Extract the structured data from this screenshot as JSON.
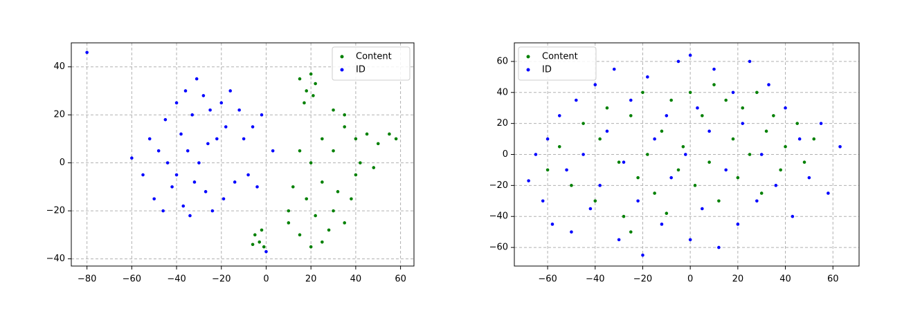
{
  "chart_data": [
    {
      "type": "scatter",
      "xlim": [
        -87,
        66
      ],
      "ylim": [
        -43,
        50
      ],
      "xticks": [
        {
          "value": -80,
          "label": "−80"
        },
        {
          "value": -60,
          "label": "−60"
        },
        {
          "value": -40,
          "label": "−40"
        },
        {
          "value": -20,
          "label": "−20"
        },
        0,
        20,
        40,
        60
      ],
      "yticks": [
        {
          "value": -40,
          "label": "−40"
        },
        {
          "value": -20,
          "label": "−20"
        },
        0,
        20,
        40
      ],
      "grid": true,
      "legend": "upper right",
      "series": [
        {
          "name": "Content",
          "color": "#008000",
          "x": [
            15,
            18,
            20,
            22,
            17,
            21,
            -5,
            -3,
            -1,
            -6,
            -2,
            10,
            15,
            20,
            25,
            28,
            30,
            35,
            18,
            22,
            12,
            25,
            32,
            38,
            40,
            15,
            20,
            25,
            30,
            35,
            40,
            45,
            50,
            55,
            58,
            48,
            42,
            35,
            30,
            10
          ],
          "values": [
            35,
            30,
            37,
            33,
            25,
            28,
            -30,
            -33,
            -35,
            -34,
            -28,
            -25,
            -30,
            -35,
            -33,
            -28,
            -20,
            -25,
            -15,
            -22,
            -10,
            -8,
            -12,
            -15,
            -5,
            5,
            0,
            10,
            5,
            15,
            10,
            12,
            8,
            12,
            10,
            -2,
            0,
            20,
            22,
            -20
          ]
        },
        {
          "name": "ID",
          "color": "#0000ff",
          "x": [
            -80,
            -60,
            -55,
            -52,
            -50,
            -48,
            -46,
            -45,
            -44,
            -42,
            -40,
            -40,
            -38,
            -37,
            -36,
            -35,
            -34,
            -33,
            -32,
            -31,
            -30,
            -28,
            -27,
            -26,
            -25,
            -24,
            -22,
            -20,
            -19,
            -18,
            -16,
            -14,
            -12,
            -10,
            -8,
            -6,
            -4,
            -2,
            3,
            0
          ],
          "values": [
            46,
            2,
            -5,
            10,
            -15,
            5,
            -20,
            18,
            0,
            -10,
            25,
            -5,
            12,
            -18,
            30,
            5,
            -22,
            20,
            -8,
            35,
            0,
            28,
            -12,
            8,
            22,
            -20,
            10,
            25,
            -15,
            15,
            30,
            -8,
            22,
            10,
            -5,
            15,
            -10,
            20,
            5,
            -37
          ]
        }
      ]
    },
    {
      "type": "scatter",
      "xlim": [
        -74,
        71
      ],
      "ylim": [
        -72,
        72
      ],
      "xticks": [
        {
          "value": -60,
          "label": "−60"
        },
        {
          "value": -40,
          "label": "−40"
        },
        {
          "value": -20,
          "label": "−20"
        },
        0,
        20,
        40,
        60
      ],
      "yticks": [
        {
          "value": -60,
          "label": "−60"
        },
        {
          "value": -40,
          "label": "−40"
        },
        {
          "value": -20,
          "label": "−20"
        },
        0,
        20,
        40,
        60
      ],
      "grid": true,
      "legend": "upper left",
      "series": [
        {
          "name": "Content",
          "color": "#008000",
          "x": [
            -60,
            -55,
            -50,
            -45,
            -40,
            -38,
            -35,
            -30,
            -28,
            -25,
            -22,
            -20,
            -18,
            -15,
            -12,
            -10,
            -8,
            -5,
            -3,
            0,
            2,
            5,
            8,
            10,
            12,
            15,
            18,
            20,
            22,
            25,
            28,
            30,
            32,
            35,
            38,
            40,
            45,
            48,
            52,
            -25
          ],
          "values": [
            -10,
            5,
            -20,
            20,
            -30,
            10,
            30,
            -5,
            -40,
            25,
            -15,
            40,
            0,
            -25,
            15,
            -38,
            35,
            -10,
            5,
            40,
            -20,
            25,
            -5,
            45,
            -30,
            35,
            10,
            -15,
            30,
            0,
            40,
            -25,
            15,
            25,
            -10,
            5,
            20,
            -5,
            10,
            -50
          ]
        },
        {
          "name": "ID",
          "color": "#0000ff",
          "x": [
            -68,
            -65,
            -62,
            -60,
            -58,
            -55,
            -52,
            -50,
            -48,
            -45,
            -42,
            -40,
            -38,
            -35,
            -32,
            -30,
            -28,
            -25,
            -22,
            -20,
            -18,
            -15,
            -12,
            -10,
            -8,
            -5,
            -2,
            0,
            0,
            3,
            5,
            8,
            10,
            12,
            15,
            18,
            20,
            22,
            25,
            28,
            30,
            33,
            36,
            40,
            43,
            46,
            50,
            55,
            58,
            63
          ],
          "values": [
            -17,
            0,
            -30,
            10,
            -45,
            25,
            -10,
            -50,
            35,
            0,
            -35,
            45,
            -20,
            15,
            55,
            -55,
            -5,
            35,
            -30,
            -65,
            50,
            10,
            -45,
            25,
            -15,
            60,
            0,
            -55,
            64,
            30,
            -35,
            15,
            55,
            -60,
            -10,
            40,
            -45,
            20,
            60,
            -30,
            0,
            45,
            -20,
            30,
            -40,
            10,
            -15,
            20,
            -25,
            5
          ]
        }
      ]
    }
  ]
}
